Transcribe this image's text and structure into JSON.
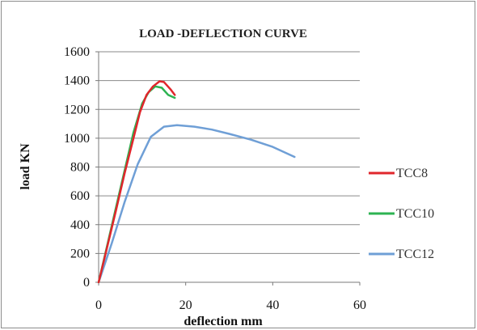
{
  "chart_data": {
    "type": "line",
    "title": "LOAD -DEFLECTION CURVE",
    "xlabel": "deflection mm",
    "ylabel": "load KN",
    "xlim": [
      0,
      60
    ],
    "ylim": [
      0,
      1600
    ],
    "x_ticks": [
      "0",
      "20",
      "40",
      "60"
    ],
    "y_ticks": [
      "0",
      "200",
      "400",
      "600",
      "800",
      "1000",
      "1200",
      "1400",
      "1600"
    ],
    "grid": "horizontal",
    "legend_position": "right",
    "series": [
      {
        "name": "TCC8",
        "color": "#e0262c",
        "points": [
          [
            0,
            0
          ],
          [
            2,
            250
          ],
          [
            4,
            500
          ],
          [
            6,
            760
          ],
          [
            8,
            1000
          ],
          [
            9.5,
            1180
          ],
          [
            11,
            1300
          ],
          [
            12.5,
            1360
          ],
          [
            14,
            1395
          ],
          [
            15,
            1390
          ],
          [
            16.5,
            1340
          ],
          [
            17.5,
            1300
          ]
        ]
      },
      {
        "name": "TCC10",
        "color": "#2db352",
        "points": [
          [
            0,
            0
          ],
          [
            2,
            260
          ],
          [
            4,
            520
          ],
          [
            6,
            780
          ],
          [
            8,
            1040
          ],
          [
            10,
            1240
          ],
          [
            11.5,
            1320
          ],
          [
            13,
            1360
          ],
          [
            14.5,
            1350
          ],
          [
            16,
            1300
          ],
          [
            17.5,
            1280
          ]
        ]
      },
      {
        "name": "TCC12",
        "color": "#6f9fd6",
        "points": [
          [
            0,
            0
          ],
          [
            3,
            270
          ],
          [
            6,
            560
          ],
          [
            9,
            820
          ],
          [
            12,
            1010
          ],
          [
            15,
            1080
          ],
          [
            18,
            1090
          ],
          [
            22,
            1080
          ],
          [
            26,
            1060
          ],
          [
            30,
            1030
          ],
          [
            35,
            990
          ],
          [
            40,
            940
          ],
          [
            45,
            870
          ]
        ]
      }
    ]
  }
}
